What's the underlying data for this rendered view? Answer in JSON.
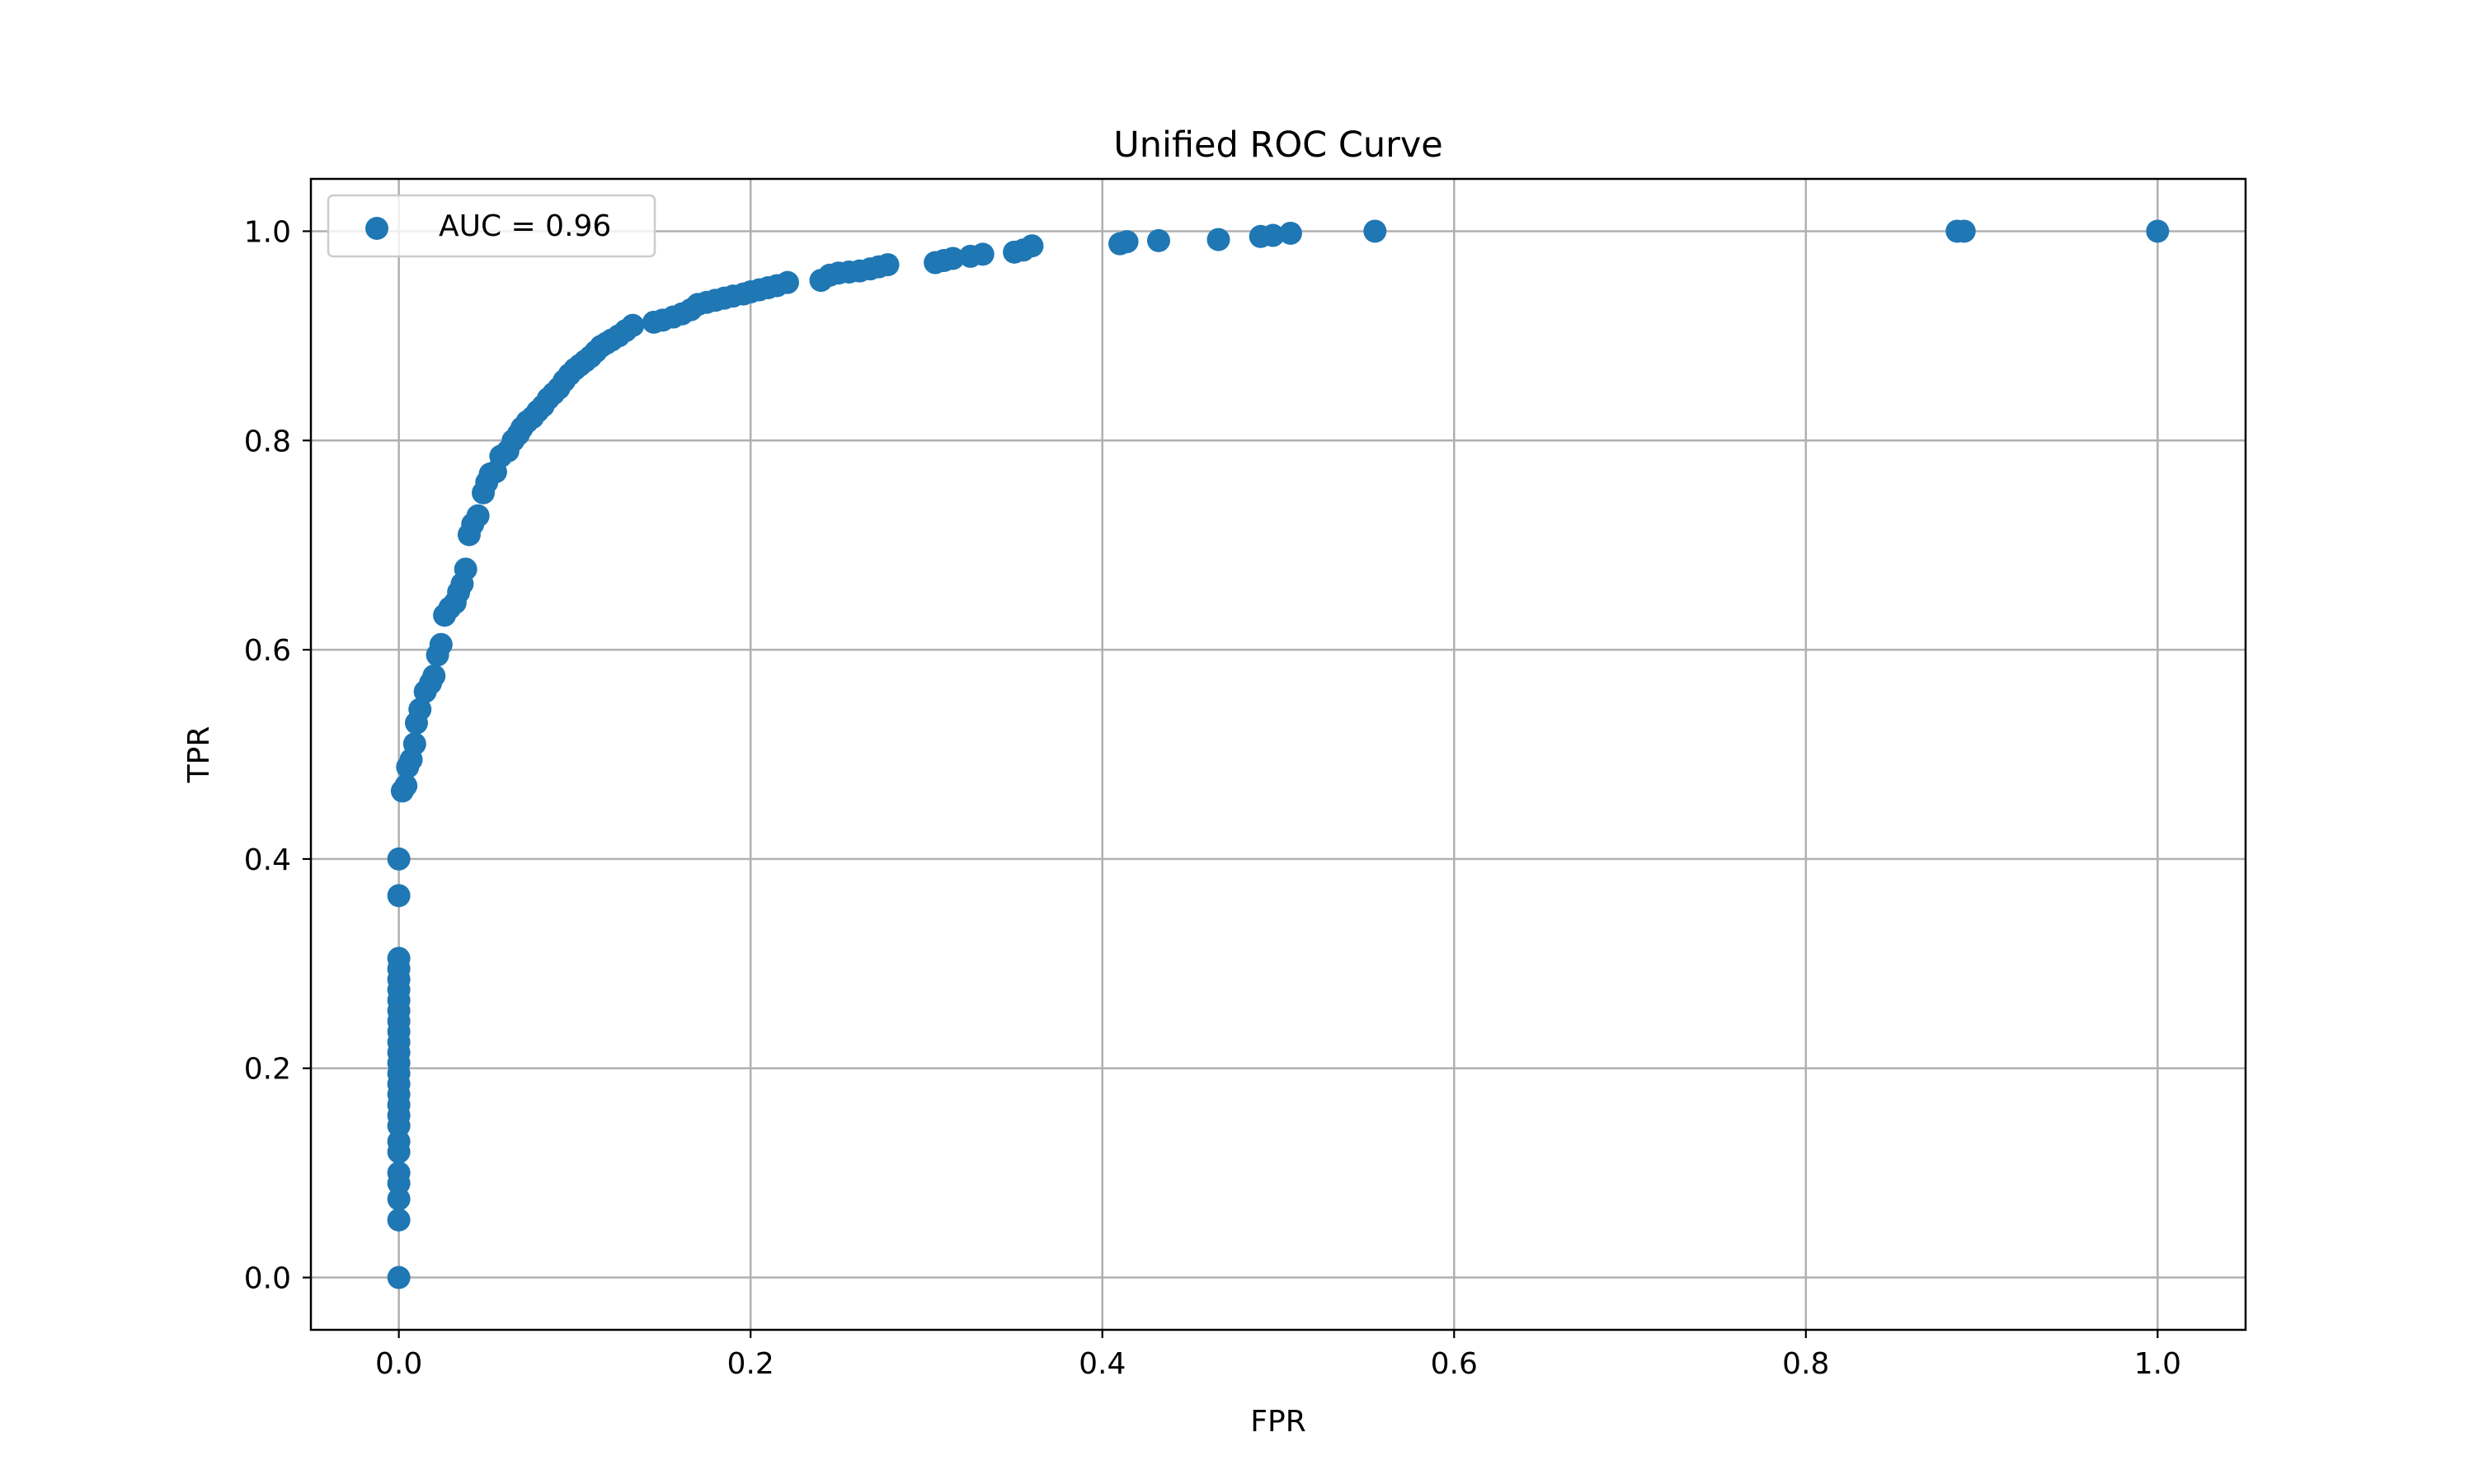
{
  "chart_data": {
    "type": "scatter",
    "title": "Unified ROC Curve",
    "xlabel": "FPR",
    "ylabel": "TPR",
    "xlim": [
      -0.05,
      1.05
    ],
    "ylim": [
      -0.05,
      1.05
    ],
    "xticks": [
      0.0,
      0.2,
      0.4,
      0.6,
      0.8,
      1.0
    ],
    "xtick_labels": [
      "0.0",
      "0.2",
      "0.4",
      "0.6",
      "0.8",
      "1.0"
    ],
    "yticks": [
      0.0,
      0.2,
      0.4,
      0.6,
      0.8,
      1.0
    ],
    "ytick_labels": [
      "0.0",
      "0.2",
      "0.4",
      "0.6",
      "0.8",
      "1.0"
    ],
    "grid": true,
    "legend": {
      "position": "top-left",
      "entries": [
        "AUC = 0.96"
      ]
    },
    "colors": {
      "series": "#1f77b4",
      "grid": "#b0b0b0",
      "axes": "#000000"
    },
    "series": [
      {
        "name": "AUC = 0.96",
        "color": "#1f77b4",
        "points": [
          [
            0.0,
            0.0
          ],
          [
            0.0,
            0.055
          ],
          [
            0.0,
            0.075
          ],
          [
            0.0,
            0.09
          ],
          [
            0.0,
            0.1
          ],
          [
            0.0,
            0.12
          ],
          [
            0.0,
            0.13
          ],
          [
            0.0,
            0.145
          ],
          [
            0.0,
            0.155
          ],
          [
            0.0,
            0.165
          ],
          [
            0.0,
            0.175
          ],
          [
            0.0,
            0.185
          ],
          [
            0.0,
            0.195
          ],
          [
            0.0,
            0.205
          ],
          [
            0.0,
            0.215
          ],
          [
            0.0,
            0.225
          ],
          [
            0.0,
            0.235
          ],
          [
            0.0,
            0.245
          ],
          [
            0.0,
            0.255
          ],
          [
            0.0,
            0.265
          ],
          [
            0.0,
            0.275
          ],
          [
            0.0,
            0.285
          ],
          [
            0.0,
            0.295
          ],
          [
            0.0,
            0.305
          ],
          [
            0.0,
            0.365
          ],
          [
            0.0,
            0.4
          ],
          [
            0.002,
            0.465
          ],
          [
            0.004,
            0.47
          ],
          [
            0.005,
            0.488
          ],
          [
            0.007,
            0.495
          ],
          [
            0.009,
            0.51
          ],
          [
            0.01,
            0.53
          ],
          [
            0.012,
            0.543
          ],
          [
            0.015,
            0.56
          ],
          [
            0.018,
            0.568
          ],
          [
            0.02,
            0.575
          ],
          [
            0.022,
            0.595
          ],
          [
            0.024,
            0.605
          ],
          [
            0.026,
            0.633
          ],
          [
            0.029,
            0.64
          ],
          [
            0.032,
            0.645
          ],
          [
            0.034,
            0.655
          ],
          [
            0.036,
            0.663
          ],
          [
            0.038,
            0.677
          ],
          [
            0.04,
            0.71
          ],
          [
            0.042,
            0.72
          ],
          [
            0.045,
            0.728
          ],
          [
            0.048,
            0.75
          ],
          [
            0.05,
            0.76
          ],
          [
            0.052,
            0.768
          ],
          [
            0.055,
            0.77
          ],
          [
            0.058,
            0.785
          ],
          [
            0.062,
            0.79
          ],
          [
            0.065,
            0.8
          ],
          [
            0.068,
            0.806
          ],
          [
            0.07,
            0.812
          ],
          [
            0.073,
            0.818
          ],
          [
            0.076,
            0.822
          ],
          [
            0.079,
            0.828
          ],
          [
            0.082,
            0.833
          ],
          [
            0.085,
            0.84
          ],
          [
            0.088,
            0.845
          ],
          [
            0.091,
            0.85
          ],
          [
            0.094,
            0.857
          ],
          [
            0.097,
            0.863
          ],
          [
            0.1,
            0.868
          ],
          [
            0.103,
            0.872
          ],
          [
            0.106,
            0.876
          ],
          [
            0.109,
            0.88
          ],
          [
            0.112,
            0.885
          ],
          [
            0.115,
            0.89
          ],
          [
            0.118,
            0.893
          ],
          [
            0.121,
            0.896
          ],
          [
            0.125,
            0.9
          ],
          [
            0.129,
            0.905
          ],
          [
            0.133,
            0.91
          ],
          [
            0.145,
            0.913
          ],
          [
            0.15,
            0.915
          ],
          [
            0.156,
            0.918
          ],
          [
            0.161,
            0.921
          ],
          [
            0.166,
            0.925
          ],
          [
            0.17,
            0.93
          ],
          [
            0.175,
            0.932
          ],
          [
            0.18,
            0.934
          ],
          [
            0.185,
            0.936
          ],
          [
            0.19,
            0.938
          ],
          [
            0.196,
            0.94
          ],
          [
            0.2,
            0.942
          ],
          [
            0.205,
            0.944
          ],
          [
            0.21,
            0.946
          ],
          [
            0.215,
            0.948
          ],
          [
            0.221,
            0.951
          ],
          [
            0.24,
            0.953
          ],
          [
            0.245,
            0.958
          ],
          [
            0.25,
            0.96
          ],
          [
            0.256,
            0.961
          ],
          [
            0.262,
            0.962
          ],
          [
            0.268,
            0.964
          ],
          [
            0.273,
            0.966
          ],
          [
            0.278,
            0.968
          ],
          [
            0.305,
            0.97
          ],
          [
            0.31,
            0.972
          ],
          [
            0.315,
            0.974
          ],
          [
            0.325,
            0.976
          ],
          [
            0.332,
            0.978
          ],
          [
            0.35,
            0.98
          ],
          [
            0.355,
            0.982
          ],
          [
            0.36,
            0.986
          ],
          [
            0.41,
            0.988
          ],
          [
            0.414,
            0.99
          ],
          [
            0.432,
            0.991
          ],
          [
            0.466,
            0.992
          ],
          [
            0.49,
            0.995
          ],
          [
            0.497,
            0.996
          ],
          [
            0.507,
            0.998
          ],
          [
            0.555,
            1.0
          ],
          [
            0.886,
            1.0
          ],
          [
            0.89,
            1.0
          ],
          [
            1.0,
            1.0
          ]
        ]
      }
    ]
  }
}
